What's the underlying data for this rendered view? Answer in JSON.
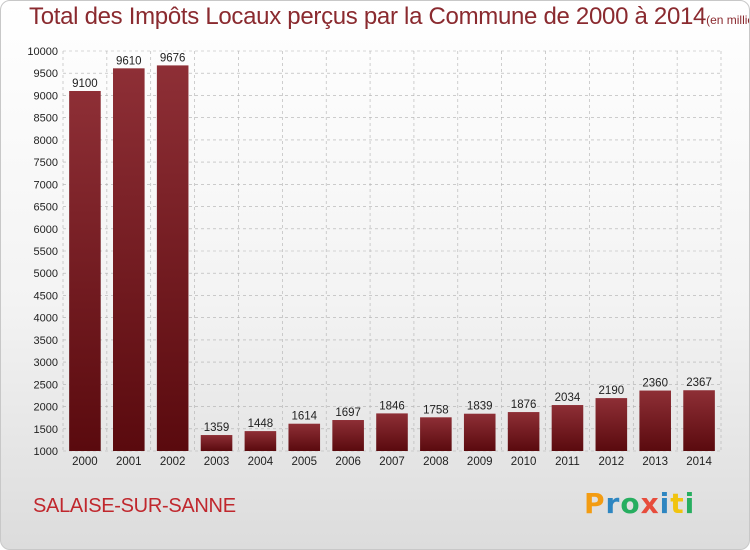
{
  "header": {
    "title": "Total des Impôts Locaux perçus par la Commune de 2000 à 2014",
    "unit": "(en milliers d'€)"
  },
  "footer": {
    "commune": "SALAISE-SUR-SANNE",
    "brand_letters": [
      "P",
      "r",
      "o",
      "x",
      "i",
      "t",
      "i"
    ],
    "brand_colors": [
      "#f39c12",
      "#2e86c1",
      "#27ae60",
      "#e74c3c",
      "#2e86c1",
      "#f1c40f",
      "#27ae60"
    ]
  },
  "colors": {
    "bar_top": "#8e2f36",
    "bar_bottom": "#5a0a0e",
    "grid": "#b0b0b0"
  },
  "chart_data": {
    "type": "bar",
    "title": "Total des Impôts Locaux perçus par la Commune de 2000 à 2014",
    "xlabel": "",
    "ylabel": "",
    "ylim": [
      1000,
      10000
    ],
    "yticks": [
      1000,
      1500,
      2000,
      2500,
      3000,
      3500,
      4000,
      4500,
      5000,
      5500,
      6000,
      6500,
      7000,
      7500,
      8000,
      8500,
      9000,
      9500,
      10000
    ],
    "grid": true,
    "categories": [
      "2000",
      "2001",
      "2002",
      "2003",
      "2004",
      "2005",
      "2006",
      "2007",
      "2008",
      "2009",
      "2010",
      "2011",
      "2012",
      "2013",
      "2014"
    ],
    "values": [
      9100,
      9610,
      9676,
      1359,
      1448,
      1614,
      1697,
      1846,
      1758,
      1839,
      1876,
      2034,
      2190,
      2360,
      2367
    ]
  }
}
